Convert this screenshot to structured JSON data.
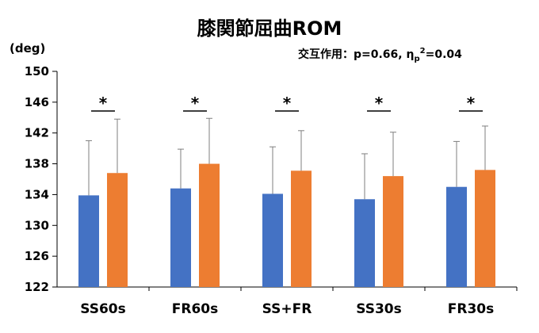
{
  "chart_data": {
    "type": "bar",
    "title": "膝関節屈曲ROM",
    "ylabel": "(deg)",
    "annotation_prefix": "交互作用：p=0.66, η",
    "annotation_sub": "p",
    "annotation_sup": "2",
    "annotation_suffix": "=0.04",
    "ylim": [
      122,
      150
    ],
    "yticks": [
      122,
      126,
      130,
      134,
      138,
      142,
      146,
      150
    ],
    "categories": [
      "SS60s",
      "FR60s",
      "SS+FR",
      "SS30s",
      "FR30s"
    ],
    "series": [
      {
        "values": [
          133.9,
          134.8,
          134.1,
          133.4,
          135.0
        ],
        "error": [
          7.1,
          5.1,
          6.1,
          5.9,
          5.9
        ],
        "color": "#4472C4"
      },
      {
        "values": [
          136.8,
          138.0,
          137.1,
          136.4,
          137.2
        ],
        "error": [
          7.0,
          5.9,
          5.2,
          5.7,
          5.7
        ],
        "color": "#ED7D31"
      }
    ],
    "significance_marks": [
      "*",
      "*",
      "*",
      "*",
      "*"
    ],
    "grid": false,
    "legend": "none"
  }
}
